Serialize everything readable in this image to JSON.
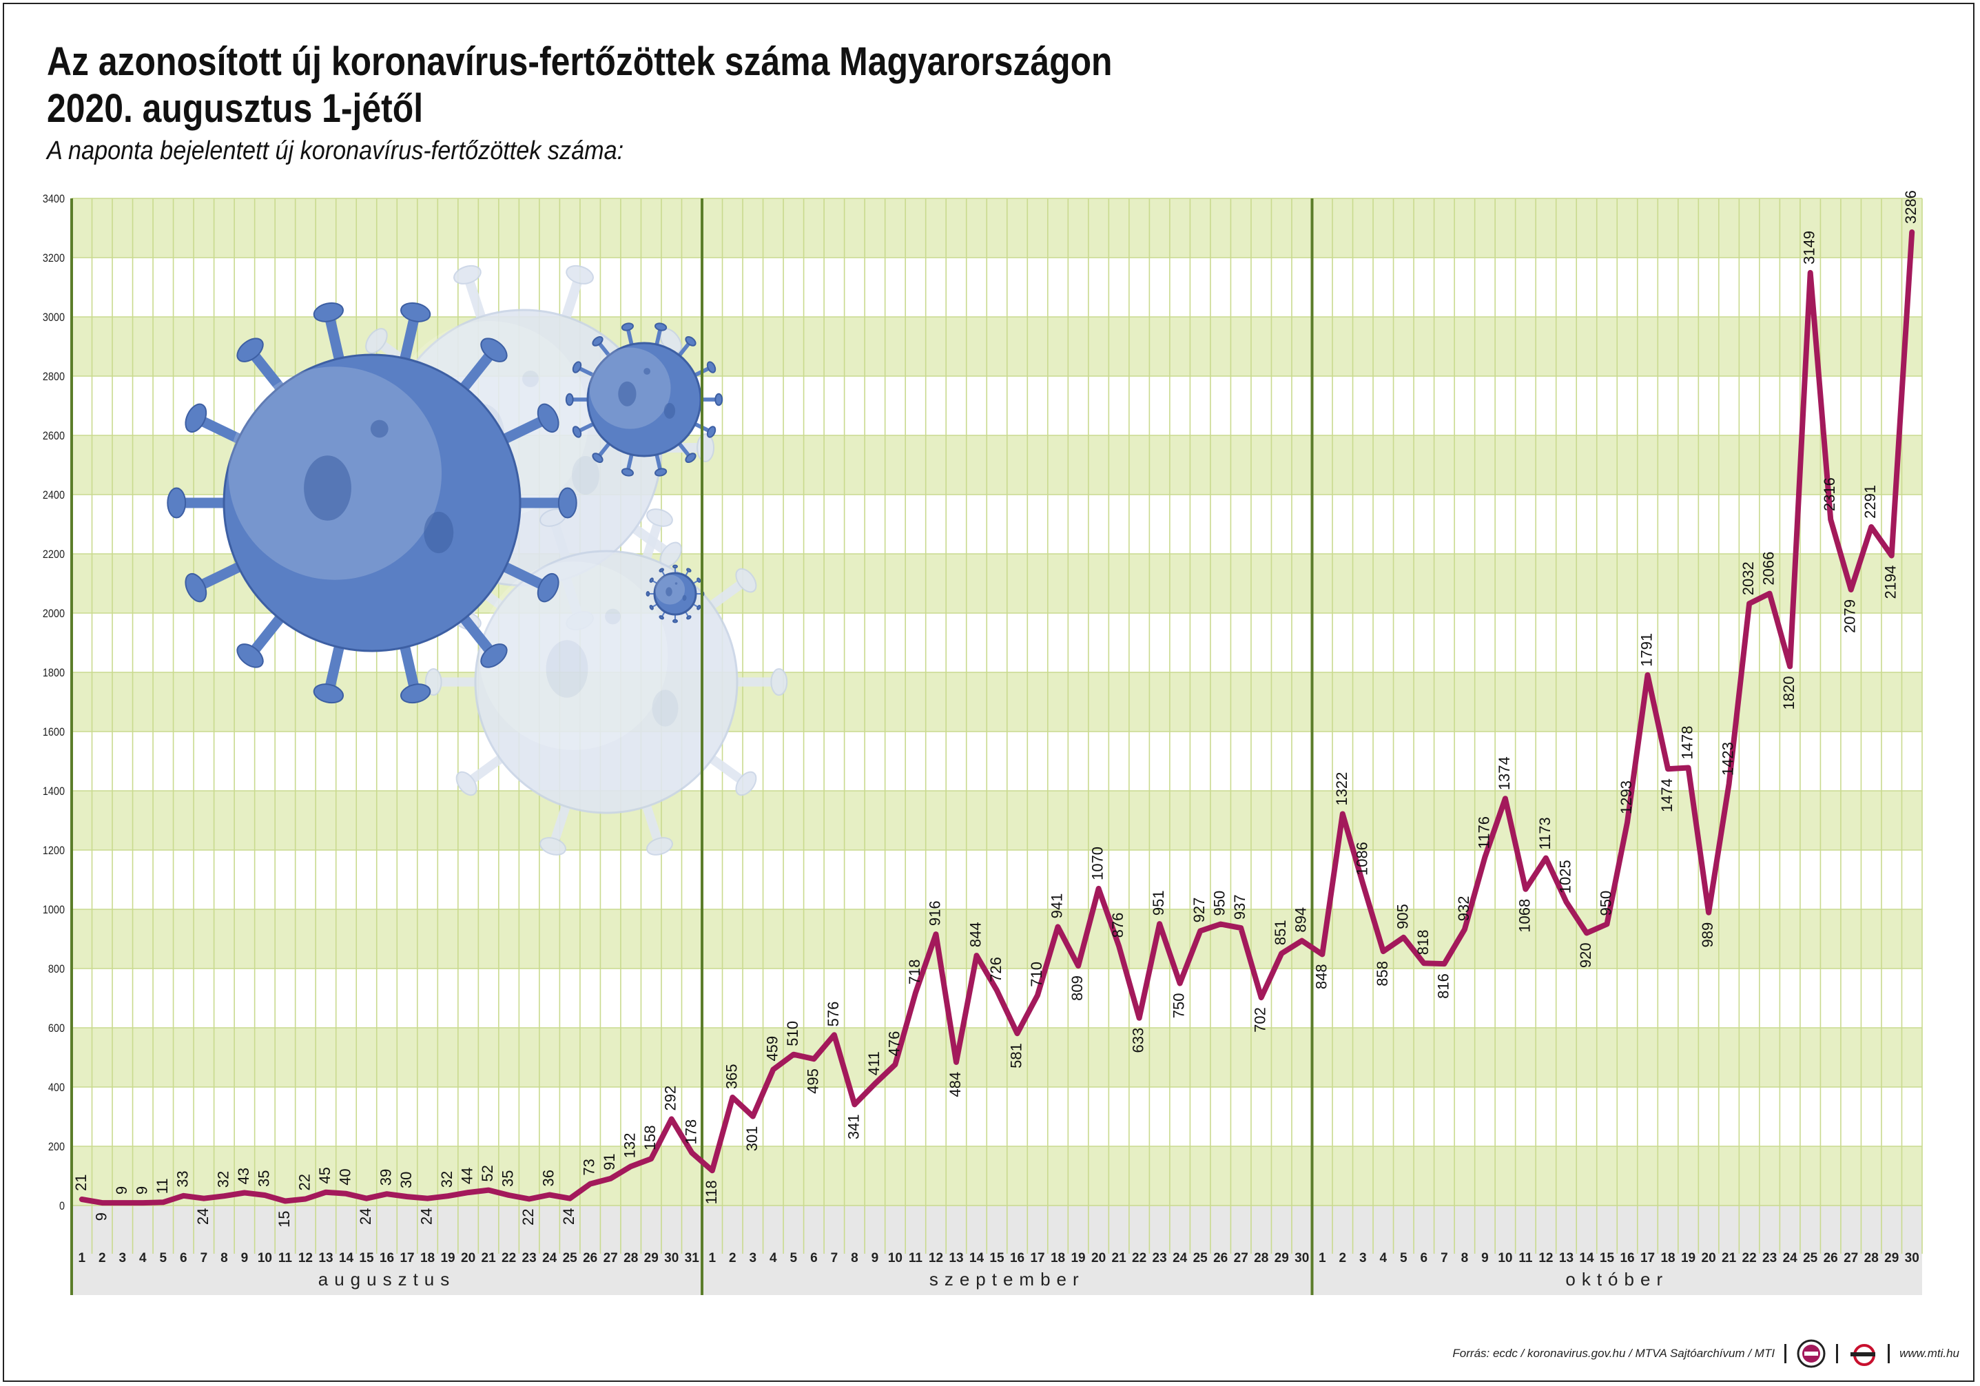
{
  "header": {
    "title_line1": "Az azonosított új koronavírus-fertőzöttek száma Magyarországon",
    "title_line2": "2020. augusztus 1-jétől",
    "subtitle": "A naponta bejelentett új koronavírus-fertőzöttek száma:"
  },
  "footer": {
    "source": "Forrás: ecdc / koronavirus.gov.hu / MTVA Sajtóarchívum / MTI",
    "website": "www.mti.hu",
    "logo1": "mtva-logo-icon",
    "logo2": "mti-logo-icon"
  },
  "colors": {
    "line": "#a3195b",
    "band": "#e6efc4",
    "grid": "#c9da8e",
    "month_divider": "#5b7d2a",
    "virus_main": "#5a7fc4",
    "virus_light": "#dfe6f1"
  },
  "decoration": {
    "icon": "coronavirus-icon"
  },
  "chart_data": {
    "type": "line",
    "ylim": [
      0,
      3400
    ],
    "yticks": [
      0,
      200,
      400,
      600,
      800,
      1000,
      1200,
      1400,
      1600,
      1800,
      2000,
      2200,
      2400,
      2600,
      2800,
      3000,
      3200,
      3400
    ],
    "grid": true,
    "months": [
      {
        "name": "augusztus",
        "days": [
          "1",
          "2",
          "3",
          "4",
          "5",
          "6",
          "7",
          "8",
          "9",
          "10",
          "11",
          "12",
          "13",
          "14",
          "15",
          "16",
          "17",
          "18",
          "19",
          "20",
          "21",
          "22",
          "23",
          "24",
          "25",
          "26",
          "27",
          "28",
          "29",
          "30",
          "31"
        ]
      },
      {
        "name": "szeptember",
        "days": [
          "1",
          "2",
          "3",
          "4",
          "5",
          "6",
          "7",
          "8",
          "9",
          "10",
          "11",
          "12",
          "13",
          "14",
          "15",
          "16",
          "17",
          "18",
          "19",
          "20",
          "21",
          "22",
          "23",
          "24",
          "25",
          "26",
          "27",
          "28",
          "29",
          "30"
        ]
      },
      {
        "name": "október",
        "days": [
          "1",
          "2",
          "3",
          "4",
          "5",
          "6",
          "7",
          "8",
          "9",
          "10",
          "11",
          "12",
          "13",
          "14",
          "15",
          "16",
          "17",
          "18",
          "19",
          "20",
          "21",
          "22",
          "23",
          "24",
          "25",
          "26",
          "27",
          "28",
          "29",
          "30"
        ]
      }
    ],
    "values": [
      21,
      9,
      9,
      9,
      11,
      33,
      24,
      32,
      43,
      35,
      15,
      22,
      45,
      40,
      24,
      39,
      30,
      24,
      32,
      44,
      52,
      35,
      22,
      36,
      24,
      73,
      91,
      132,
      158,
      292,
      178,
      118,
      365,
      301,
      459,
      510,
      495,
      576,
      341,
      411,
      476,
      718,
      916,
      484,
      844,
      726,
      581,
      710,
      941,
      809,
      1070,
      876,
      633,
      951,
      750,
      927,
      950,
      937,
      702,
      851,
      894,
      848,
      1322,
      1086,
      858,
      905,
      818,
      816,
      932,
      1176,
      1374,
      1068,
      1173,
      1025,
      920,
      950,
      1293,
      1791,
      1474,
      1478,
      989,
      1423,
      2032,
      2066,
      1820,
      3149,
      2316,
      2079,
      2291,
      2194,
      3286
    ]
  }
}
